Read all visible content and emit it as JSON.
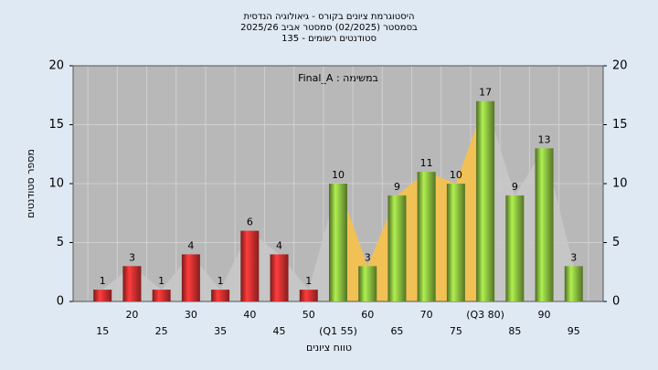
{
  "chart_data": {
    "type": "bar",
    "title": [
      "היסטוגרמת ציונים בקורס - גיאולוגיה הנדסית",
      "בסמסטר (02/2025) סמסטר אביב 2025/26",
      "סטודנטים רשומים - 135"
    ],
    "annotation": "במשימה : Final_A",
    "x_label": "טווח ציונים",
    "y_label": "מספר סטודנטים",
    "categories": [
      "15",
      "20",
      "25",
      "30",
      "35",
      "40",
      "45",
      "50",
      "(Q1 55)",
      "60",
      "65",
      "70",
      "75",
      "(Q3 80)",
      "85",
      "90",
      "95"
    ],
    "values": [
      1,
      3,
      1,
      4,
      1,
      6,
      4,
      1,
      10,
      3,
      9,
      11,
      10,
      17,
      9,
      13,
      3
    ],
    "bar_colors": [
      "#e03030",
      "#e03030",
      "#e03030",
      "#e03030",
      "#e03030",
      "#e03030",
      "#e03030",
      "#e03030",
      "#8cc040",
      "#8cc040",
      "#8cc040",
      "#8cc040",
      "#8cc040",
      "#8cc040",
      "#8cc040",
      "#8cc040",
      "#8cc040"
    ],
    "ylim": [
      0,
      20
    ],
    "yticks": [
      0,
      5,
      10,
      15,
      20
    ],
    "grid": true
  }
}
